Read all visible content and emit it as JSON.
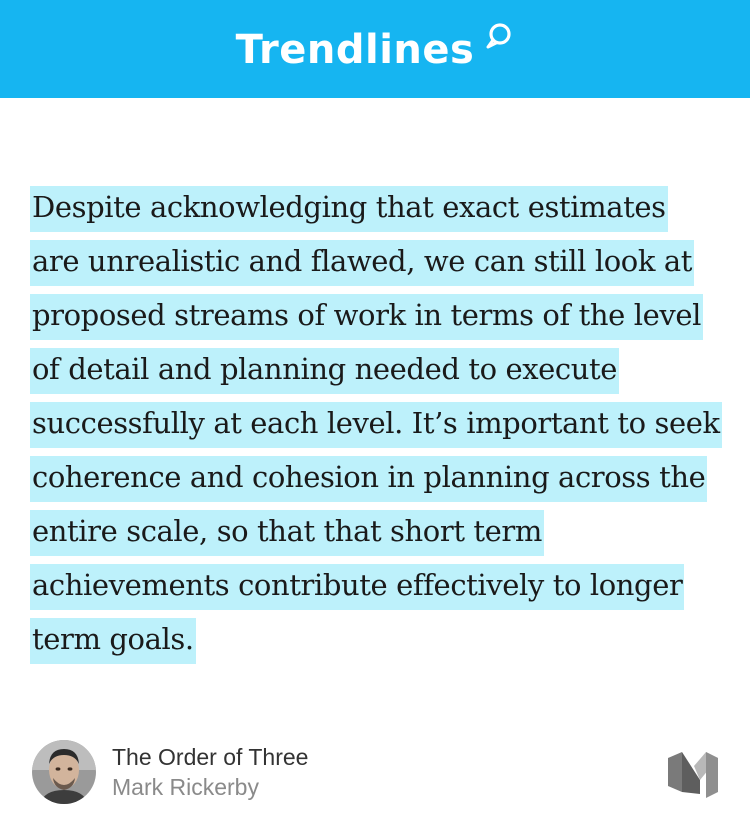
{
  "header": {
    "brand": "Trendlines",
    "icon": "speech-bubble-icon",
    "background_color": "#16b5f1"
  },
  "quote": {
    "text": "Despite acknowledging that exact estimates are unrealistic and flawed, we can still look at proposed streams of work in terms of the level of detail and planning needed to execute successfully at each level. It’s important to seek coherence and cohesion in planning across the entire scale, so that that short term achievements contribute effectively to longer term goals.",
    "highlight_color": "#bdf1fb"
  },
  "footer": {
    "post_title": "The Order of Three",
    "author": "Mark Rickerby",
    "avatar_icon": "author-avatar",
    "logo_icon": "medium-logo-icon"
  }
}
